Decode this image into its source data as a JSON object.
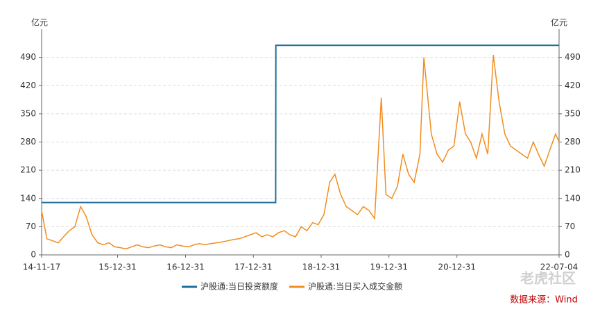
{
  "chart_data": {
    "type": "line",
    "ylabel": "亿元",
    "y2label": "亿元",
    "ylim": [
      0,
      560
    ],
    "yticks": [
      0,
      70,
      140,
      210,
      280,
      350,
      420,
      490
    ],
    "y2lim": [
      0,
      560
    ],
    "y2ticks": [
      0,
      70,
      140,
      210,
      280,
      350,
      420,
      490
    ],
    "xlim": [
      "14-11-17",
      "22-07-04"
    ],
    "xticks": [
      "14-11-17",
      "15-12-31",
      "16-12-31",
      "17-12-31",
      "18-12-31",
      "19-12-31",
      "20-12-31",
      "22-07-04"
    ],
    "grid": true,
    "legend": "bottom",
    "series": [
      {
        "name": "沪股通:当日投资额度",
        "color": "#1f6e99",
        "x": [
          "14-11-17",
          "18-04-30",
          "18-05-01",
          "22-07-04"
        ],
        "values": [
          130,
          130,
          520,
          520
        ]
      },
      {
        "name": "沪股通:当日买入成交金额",
        "color": "#f28c1e",
        "x": [
          "14-11-17",
          "14-12-15",
          "15-01-15",
          "15-02-15",
          "15-03-15",
          "15-04-15",
          "15-05-15",
          "15-06-15",
          "15-07-15",
          "15-08-15",
          "15-09-15",
          "15-10-15",
          "15-11-15",
          "15-12-15",
          "16-01-15",
          "16-02-15",
          "16-03-15",
          "16-04-15",
          "16-05-15",
          "16-06-15",
          "16-07-15",
          "16-08-15",
          "16-09-15",
          "16-10-15",
          "16-11-15",
          "16-12-15",
          "17-01-15",
          "17-02-15",
          "17-03-15",
          "17-04-15",
          "17-05-15",
          "17-06-15",
          "17-07-15",
          "17-08-15",
          "17-09-15",
          "17-10-15",
          "17-11-15",
          "17-12-15",
          "18-01-15",
          "18-02-15",
          "18-03-15",
          "18-04-15",
          "18-05-15",
          "18-06-15",
          "18-07-15",
          "18-08-15",
          "18-09-15",
          "18-10-15",
          "18-11-15",
          "18-12-15",
          "19-01-15",
          "19-02-15",
          "19-03-15",
          "19-04-15",
          "19-05-15",
          "19-06-15",
          "19-07-15",
          "19-08-15",
          "19-09-15",
          "19-10-15",
          "19-11-20",
          "19-12-15",
          "20-01-15",
          "20-02-15",
          "20-03-15",
          "20-04-15",
          "20-05-15",
          "20-06-15",
          "20-07-06",
          "20-08-15",
          "20-09-15",
          "20-10-15",
          "20-11-15",
          "20-12-15",
          "21-01-15",
          "21-02-15",
          "21-03-15",
          "21-04-15",
          "21-05-15",
          "21-06-15",
          "21-07-15",
          "21-08-15",
          "21-09-15",
          "21-10-15",
          "21-11-15",
          "21-12-15",
          "22-01-15",
          "22-02-15",
          "22-03-15",
          "22-04-15",
          "22-05-15",
          "22-06-15",
          "22-07-04"
        ],
        "values": [
          110,
          40,
          35,
          30,
          45,
          60,
          70,
          120,
          95,
          50,
          30,
          25,
          30,
          20,
          18,
          15,
          20,
          25,
          20,
          18,
          22,
          25,
          20,
          18,
          25,
          22,
          20,
          25,
          28,
          25,
          28,
          30,
          32,
          35,
          38,
          40,
          45,
          50,
          55,
          45,
          50,
          45,
          55,
          60,
          50,
          45,
          70,
          60,
          80,
          75,
          100,
          180,
          200,
          150,
          120,
          110,
          100,
          120,
          110,
          90,
          390,
          150,
          140,
          170,
          250,
          200,
          180,
          250,
          490,
          300,
          250,
          230,
          260,
          270,
          380,
          300,
          280,
          240,
          300,
          250,
          496,
          380,
          300,
          270,
          260,
          250,
          240,
          280,
          250,
          220,
          260,
          300,
          280
        ]
      }
    ],
    "annotations": [
      "老虎社区",
      "数据来源：Wind"
    ]
  }
}
